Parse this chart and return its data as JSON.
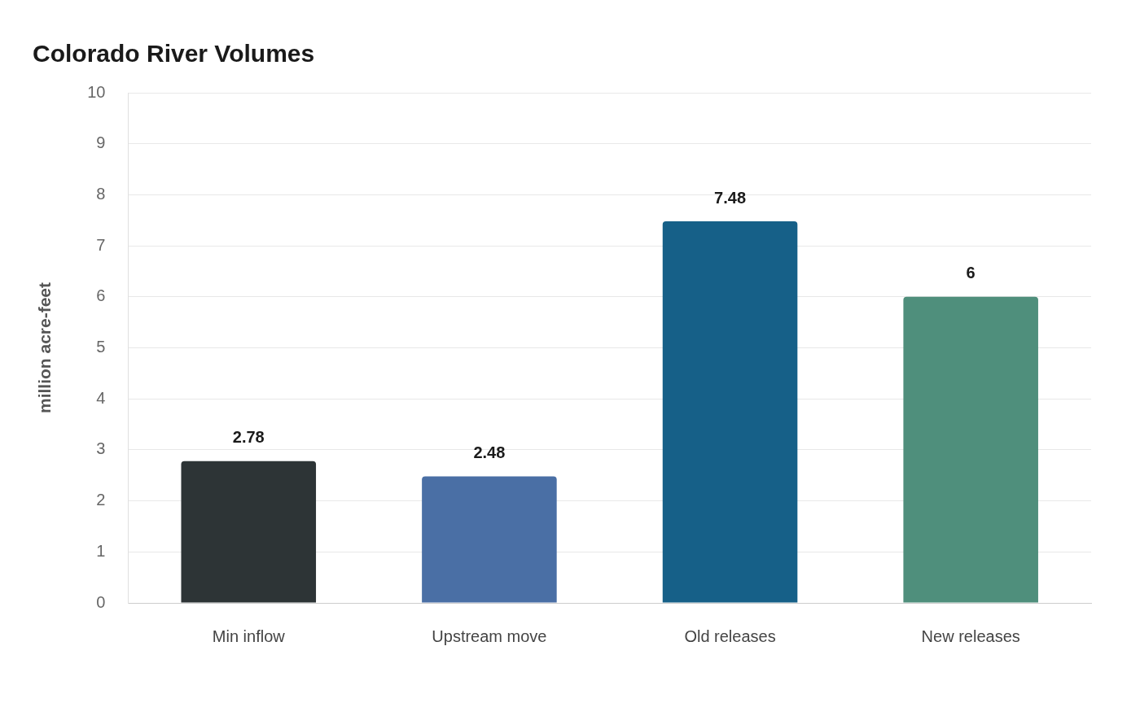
{
  "chart_data": {
    "type": "bar",
    "title": "Colorado River Volumes",
    "ylabel": "million acre-feet",
    "categories": [
      "Min inflow",
      "Upstream move",
      "Old releases",
      "New releases"
    ],
    "values": [
      2.78,
      2.48,
      7.48,
      6
    ],
    "colors": [
      "#2d3436",
      "#4a6fa5",
      "#166088",
      "#4f8f7c"
    ],
    "ylim": [
      0,
      10
    ],
    "yticks": [
      0,
      1,
      2,
      3,
      4,
      5,
      6,
      7,
      8,
      9,
      10
    ],
    "grid": "y",
    "data_labels": true,
    "legend": false
  }
}
